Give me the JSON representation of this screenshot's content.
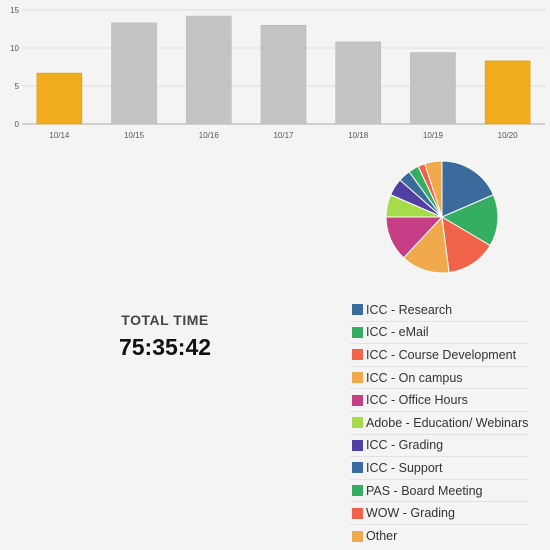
{
  "chart_data": [
    {
      "type": "bar",
      "categories": [
        "10/14",
        "10/15",
        "10/16",
        "10/17",
        "10/18",
        "10/19",
        "10/20"
      ],
      "values": [
        6.7,
        13.3,
        14.2,
        13.0,
        10.8,
        9.4,
        8.3
      ],
      "highlighted": [
        "10/14",
        "10/20"
      ],
      "colors": {
        "default": "#c4c4c4",
        "highlight": "#f0ac1c"
      },
      "yticks": [
        0,
        5,
        10,
        15
      ],
      "ylim": [
        0,
        15
      ],
      "grid": true
    },
    {
      "type": "pie",
      "labels": [
        "ICC - Research",
        "ICC - eMail",
        "ICC - Course Development",
        "ICC - On campus",
        "ICC - Office Hours",
        "Adobe - Education/ Webinars",
        "ICC - Grading",
        "ICC - Support",
        "PAS - Board Meeting",
        "WOW - Grading",
        "Other"
      ],
      "values": [
        18.5,
        15.0,
        14.5,
        14.0,
        13.0,
        6.5,
        5.0,
        3.5,
        3.0,
        2.0,
        5.0
      ],
      "colors": [
        "#3a6b9c",
        "#35ae62",
        "#f0634a",
        "#f0a94c",
        "#c63f86",
        "#a6db4a",
        "#523fa4",
        "#3a6b9c",
        "#35ae62",
        "#f0634a",
        "#f0a94c"
      ],
      "legend_position": "below"
    }
  ],
  "total": {
    "label": "TOTAL TIME",
    "value": "75:35:42"
  }
}
